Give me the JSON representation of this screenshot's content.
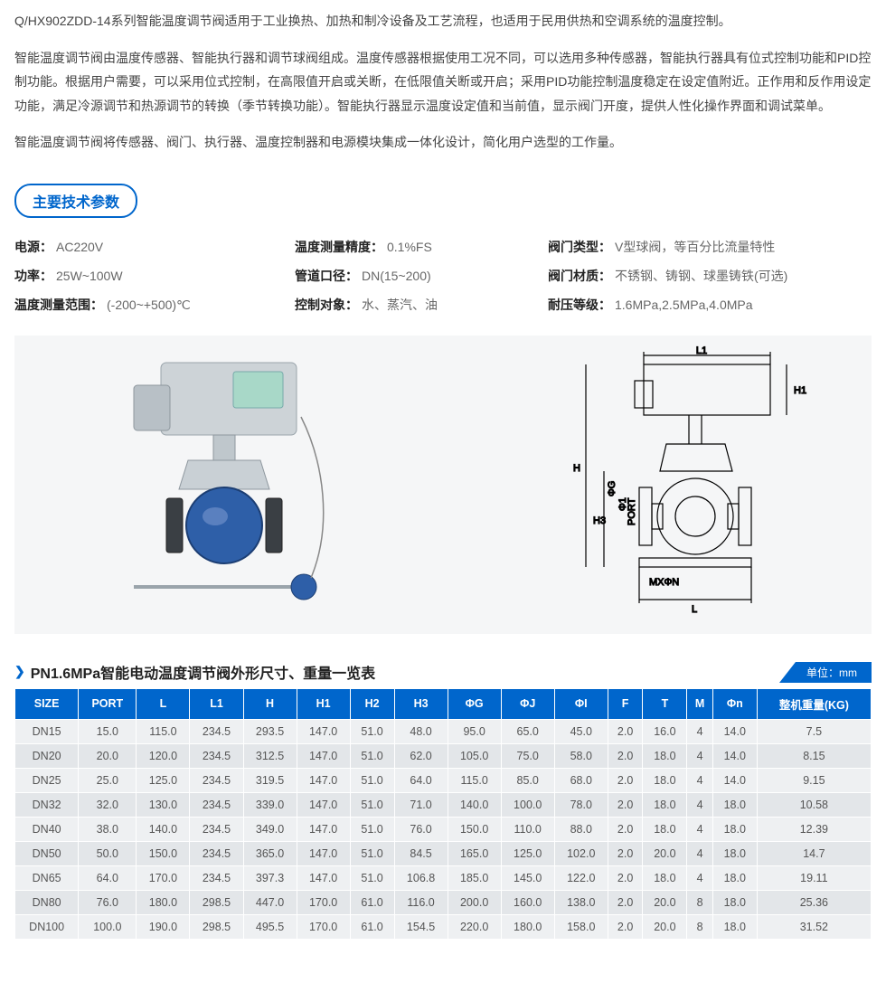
{
  "intro": {
    "p1": "Q/HX902ZDD-14系列智能温度调节阀适用于工业换热、加热和制冷设备及工艺流程，也适用于民用供热和空调系统的温度控制。",
    "p2": "智能温度调节阀由温度传感器、智能执行器和调节球阀组成。温度传感器根据使用工况不同，可以选用多种传感器，智能执行器具有位式控制功能和PID控制功能。根据用户需要，可以采用位式控制，在高限值开启或关断，在低限值关断或开启；采用PID功能控制温度稳定在设定值附近。正作用和反作用设定功能，满足冷源调节和热源调节的转换（季节转换功能）。智能执行器显示温度设定值和当前值，显示阀门开度，提供人性化操作界面和调试菜单。",
    "p3": "智能温度调节阀将传感器、阀门、执行器、温度控制器和电源模块集成一体化设计，简化用户选型的工作量。"
  },
  "spec_section_title": "主要技术参数",
  "specs": {
    "power_supply_label": "电源：",
    "power_supply_value": "AC220V",
    "accuracy_label": "温度测量精度：",
    "accuracy_value": "0.1%FS",
    "valve_type_label": "阀门类型：",
    "valve_type_value": "V型球阀，等百分比流量特性",
    "power_label": "功率：",
    "power_value": "25W~100W",
    "pipe_label": "管道口径：",
    "pipe_value": "DN(15~200)",
    "valve_mat_label": "阀门材质：",
    "valve_mat_value": "不锈钢、铸钢、球墨铸铁(可选)",
    "range_label": "温度测量范围：",
    "range_value": "(-200~+500)℃",
    "medium_label": "控制对象：",
    "medium_value": "水、蒸汽、油",
    "pressure_label": "耐压等级：",
    "pressure_value": "1.6MPa,2.5MPa,4.0MPa"
  },
  "diagram_labels": {
    "L1": "L1",
    "H1": "H1",
    "H": "H",
    "H3": "H3",
    "phiG": "ΦG",
    "phi1": "Φ1",
    "port": "PORT",
    "mxn": "MXΦN",
    "L": "L"
  },
  "table": {
    "title": "PN1.6MPa智能电动温度调节阀外形尺寸、重量一览表",
    "unit": "单位：mm",
    "columns": [
      "SIZE",
      "PORT",
      "L",
      "L1",
      "H",
      "H1",
      "H2",
      "H3",
      "ΦG",
      "ΦJ",
      "ΦI",
      "F",
      "T",
      "M",
      "Φn",
      "整机重量(KG)"
    ],
    "rows": [
      [
        "DN15",
        "15.0",
        "115.0",
        "234.5",
        "293.5",
        "147.0",
        "51.0",
        "48.0",
        "95.0",
        "65.0",
        "45.0",
        "2.0",
        "16.0",
        "4",
        "14.0",
        "7.5"
      ],
      [
        "DN20",
        "20.0",
        "120.0",
        "234.5",
        "312.5",
        "147.0",
        "51.0",
        "62.0",
        "105.0",
        "75.0",
        "58.0",
        "2.0",
        "18.0",
        "4",
        "14.0",
        "8.15"
      ],
      [
        "DN25",
        "25.0",
        "125.0",
        "234.5",
        "319.5",
        "147.0",
        "51.0",
        "64.0",
        "115.0",
        "85.0",
        "68.0",
        "2.0",
        "18.0",
        "4",
        "14.0",
        "9.15"
      ],
      [
        "DN32",
        "32.0",
        "130.0",
        "234.5",
        "339.0",
        "147.0",
        "51.0",
        "71.0",
        "140.0",
        "100.0",
        "78.0",
        "2.0",
        "18.0",
        "4",
        "18.0",
        "10.58"
      ],
      [
        "DN40",
        "38.0",
        "140.0",
        "234.5",
        "349.0",
        "147.0",
        "51.0",
        "76.0",
        "150.0",
        "110.0",
        "88.0",
        "2.0",
        "18.0",
        "4",
        "18.0",
        "12.39"
      ],
      [
        "DN50",
        "50.0",
        "150.0",
        "234.5",
        "365.0",
        "147.0",
        "51.0",
        "84.5",
        "165.0",
        "125.0",
        "102.0",
        "2.0",
        "20.0",
        "4",
        "18.0",
        "14.7"
      ],
      [
        "DN65",
        "64.0",
        "170.0",
        "234.5",
        "397.3",
        "147.0",
        "51.0",
        "106.8",
        "185.0",
        "145.0",
        "122.0",
        "2.0",
        "18.0",
        "4",
        "18.0",
        "19.11"
      ],
      [
        "DN80",
        "76.0",
        "180.0",
        "298.5",
        "447.0",
        "170.0",
        "61.0",
        "116.0",
        "200.0",
        "160.0",
        "138.0",
        "2.0",
        "20.0",
        "8",
        "18.0",
        "25.36"
      ],
      [
        "DN100",
        "100.0",
        "190.0",
        "298.5",
        "495.5",
        "170.0",
        "61.0",
        "154.5",
        "220.0",
        "180.0",
        "158.0",
        "2.0",
        "20.0",
        "8",
        "18.0",
        "31.52"
      ]
    ]
  },
  "colors": {
    "brand": "#0066cc",
    "valve_blue": "#2e5fa8",
    "actuator_gray": "#cdd3d7",
    "screen_green": "#a8d8c8",
    "bg_light": "#f5f6f7"
  }
}
